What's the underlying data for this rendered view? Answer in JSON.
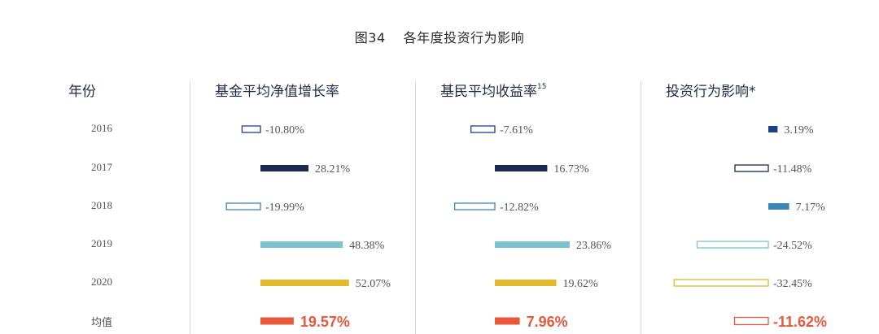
{
  "title": {
    "number": "图34",
    "text": "各年度投资行为影响"
  },
  "headers": {
    "year": "年份",
    "col1": "基金平均净值增长率",
    "col2": "基民平均收益率",
    "col2_sup": "15",
    "col3": "投资行为影响*"
  },
  "rows": [
    "2016",
    "2017",
    "2018",
    "2019",
    "2020",
    "均值"
  ],
  "colors": {
    "2016": "#1a3f8c",
    "2017": "#1c2a4f",
    "2018": "#3a86b8",
    "2019": "#7cc3d1",
    "2020": "#e2ba2c",
    "avg": "#e8593c"
  },
  "chart_data": [
    {
      "type": "bar",
      "title": "基金平均净值增长率",
      "categories": [
        "2016",
        "2017",
        "2018",
        "2019",
        "2020",
        "均值"
      ],
      "values": [
        -10.8,
        28.21,
        -19.99,
        48.38,
        52.07,
        19.57
      ],
      "labels": [
        "-10.80%",
        "28.21%",
        "-19.99%",
        "48.38%",
        "52.07%",
        "19.57%"
      ]
    },
    {
      "type": "bar",
      "title": "基民平均收益率",
      "categories": [
        "2016",
        "2017",
        "2018",
        "2019",
        "2020",
        "均值"
      ],
      "values": [
        -7.61,
        16.73,
        -12.82,
        23.86,
        19.62,
        7.96
      ],
      "labels": [
        "-7.61%",
        "16.73%",
        "-12.82%",
        "23.86%",
        "19.62%",
        "7.96%"
      ]
    },
    {
      "type": "bar",
      "title": "投资行为影响*",
      "categories": [
        "2016",
        "2017",
        "2018",
        "2019",
        "2020",
        "均值"
      ],
      "values": [
        3.19,
        -11.48,
        7.17,
        -24.52,
        -32.45,
        -11.62
      ],
      "labels": [
        "3.19%",
        "-11.48%",
        "7.17%",
        "-24.52%",
        "-32.45%",
        "-11.62%"
      ]
    }
  ]
}
